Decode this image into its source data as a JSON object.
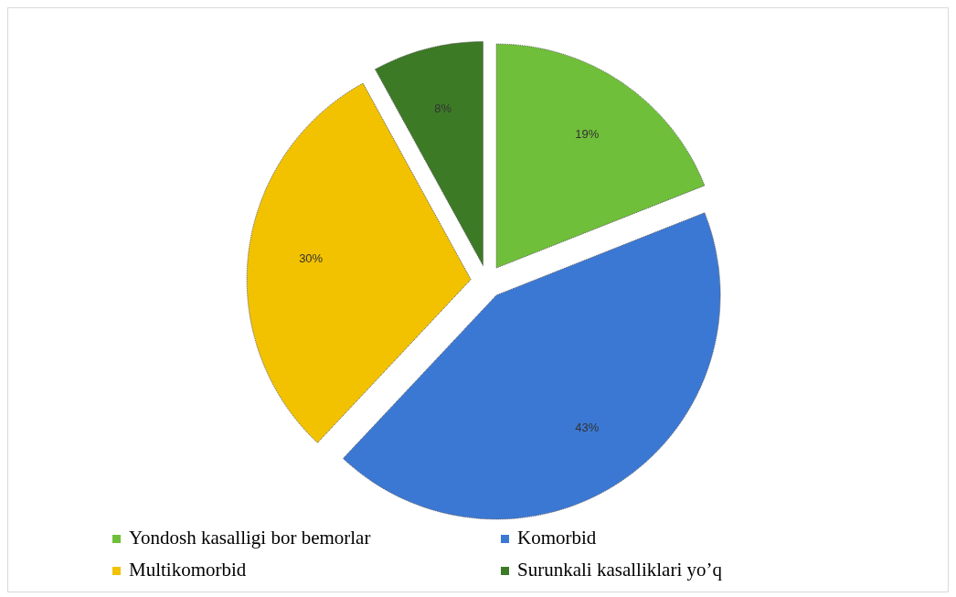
{
  "chart_data": {
    "type": "pie",
    "categories": [
      "Yondosh kasalligi bor bemorlar",
      "Komorbid",
      "Multikomorbid",
      "Surunkali kasalliklari yo’q"
    ],
    "values": [
      19,
      43,
      30,
      8
    ],
    "value_labels": [
      "19%",
      "43%",
      "30%",
      "8%"
    ],
    "colors": [
      "#6fbf3a",
      "#3b78d4",
      "#f2c200",
      "#3d7a26"
    ],
    "legend": "bottom"
  }
}
